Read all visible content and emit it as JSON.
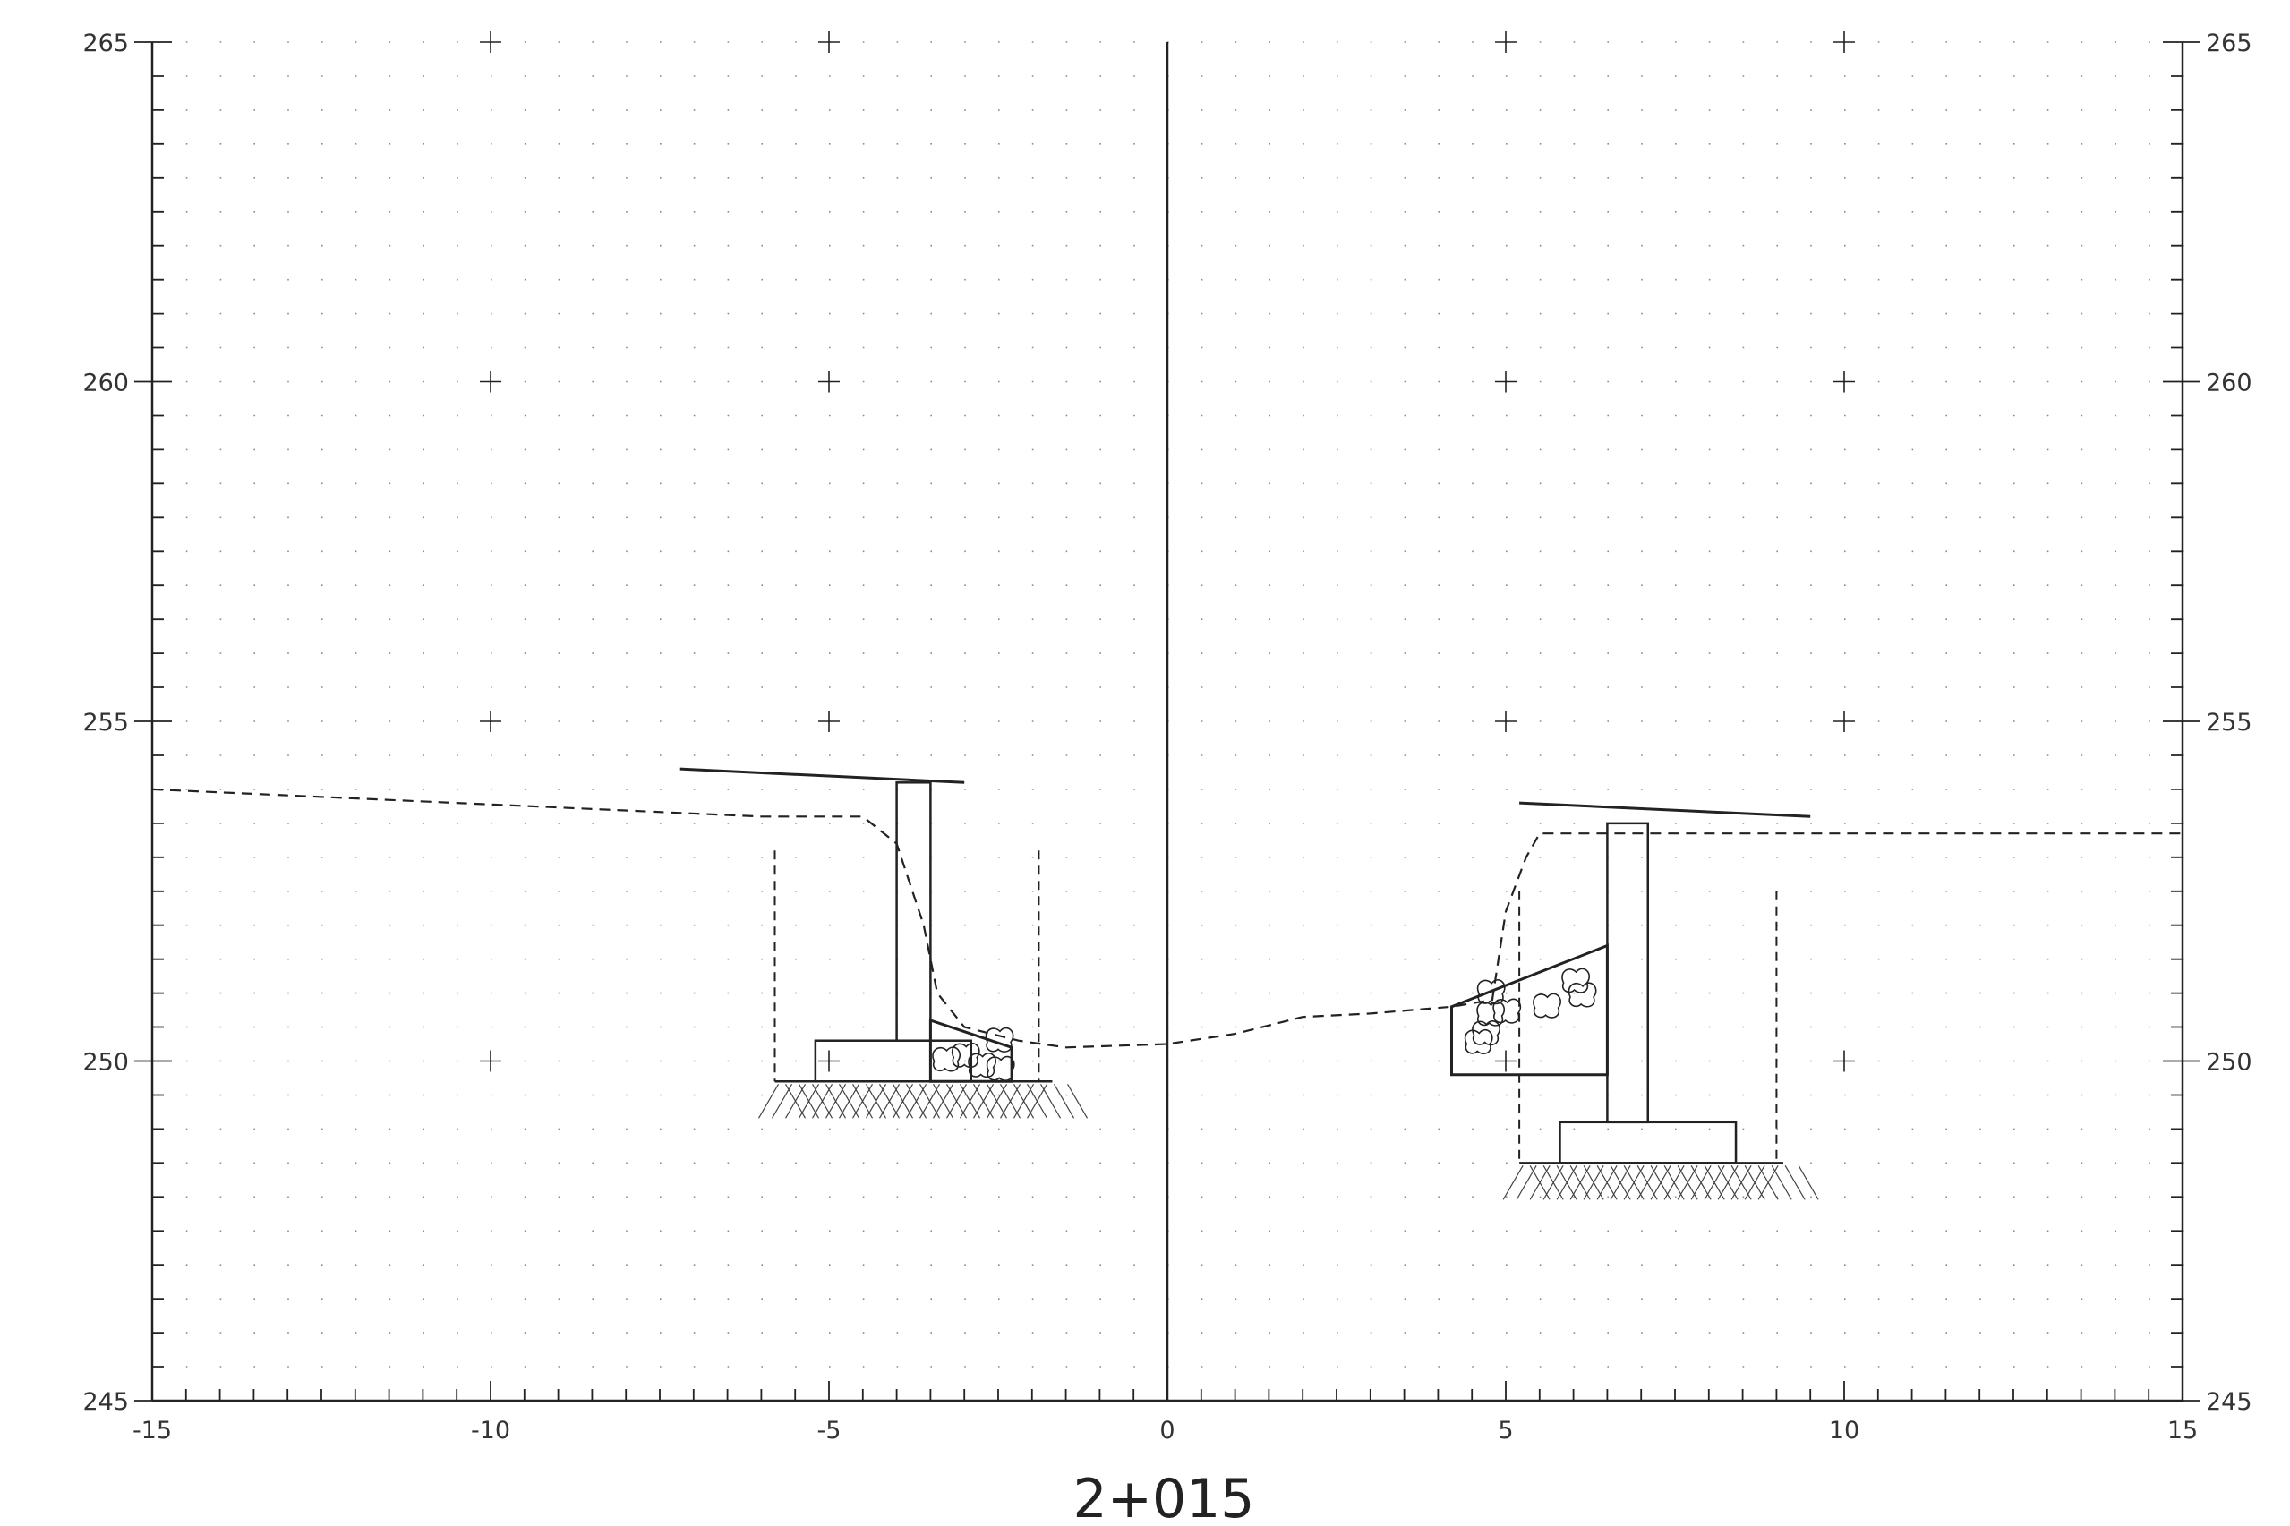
{
  "station_label": "2+015",
  "chart_data": {
    "type": "cross-section",
    "x_axis": {
      "range": [
        -15,
        15
      ],
      "major_step": 5,
      "minor_step": 0.5,
      "tick_labels": [
        "-15",
        "-10",
        "-5",
        "0",
        "5",
        "10",
        "15"
      ]
    },
    "y_axis": {
      "range": [
        245,
        265
      ],
      "major_step": 5,
      "minor_step": 0.5,
      "tick_labels": [
        "245",
        "250",
        "255",
        "260",
        "265"
      ]
    },
    "grid": "dotted",
    "ground_profile": [
      [
        -15,
        254.0
      ],
      [
        -10.5,
        253.8
      ],
      [
        -6,
        253.6
      ],
      [
        -4.5,
        253.6
      ],
      [
        -4.0,
        253.2
      ],
      [
        -3.6,
        252.0
      ],
      [
        -3.4,
        251.0
      ],
      [
        -3.0,
        250.5
      ],
      [
        -2.2,
        250.3
      ],
      [
        -1.5,
        250.2
      ],
      [
        0,
        250.25
      ],
      [
        1.0,
        250.4
      ],
      [
        2.0,
        250.65
      ],
      [
        3.0,
        250.7
      ],
      [
        4.2,
        250.8
      ],
      [
        4.8,
        250.9
      ],
      [
        5.0,
        252.2
      ],
      [
        5.3,
        253.0
      ],
      [
        5.5,
        253.35
      ],
      [
        7.0,
        253.35
      ],
      [
        15,
        253.35
      ]
    ],
    "left_abutment": {
      "deck_top": [
        [
          -7.2,
          254.3
        ],
        [
          -3.0,
          254.1
        ]
      ],
      "stem_x": [
        -4.0,
        -3.5
      ],
      "stem_top": 254.1,
      "stem_bottom": 250.3,
      "footing": {
        "x": [
          -5.2,
          -2.9
        ],
        "y": [
          249.7,
          250.3
        ]
      },
      "excavation_x": [
        -5.8,
        -1.9
      ],
      "excavation_bottom": 249.7,
      "riprap": [
        [
          -3.5,
          250.6
        ],
        [
          -2.3,
          250.2
        ],
        [
          -2.3,
          249.7
        ],
        [
          -3.5,
          249.7
        ]
      ]
    },
    "right_abutment": {
      "deck_top": [
        [
          5.2,
          253.8
        ],
        [
          9.5,
          253.6
        ]
      ],
      "stem_x": [
        6.5,
        7.1
      ],
      "stem_top": 253.5,
      "stem_bottom": 249.1,
      "footing": {
        "x": [
          5.8,
          8.4
        ],
        "y": [
          248.5,
          249.1
        ]
      },
      "excavation_x": [
        5.2,
        9.0
      ],
      "excavation_bottom": 248.5,
      "riprap": [
        [
          4.2,
          250.8
        ],
        [
          6.5,
          251.7
        ],
        [
          6.5,
          249.8
        ],
        [
          4.2,
          249.8
        ]
      ]
    },
    "left_ground_x": [
      -5.8,
      -1.7
    ],
    "right_ground_x": [
      5.2,
      9.1
    ]
  }
}
